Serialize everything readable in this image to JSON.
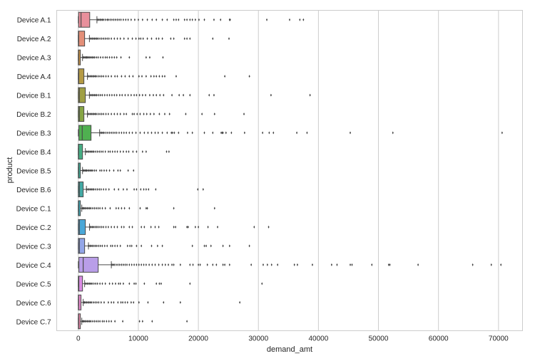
{
  "chart_data": {
    "type": "boxplot",
    "orientation": "horizontal",
    "xlabel": "demand_amt",
    "ylabel": "product",
    "xlim": [
      -3600,
      74000
    ],
    "xticks": [
      0,
      10000,
      20000,
      30000,
      40000,
      50000,
      60000,
      70000
    ],
    "xtick_labels": [
      "0",
      "10000",
      "20000",
      "30000",
      "40000",
      "50000",
      "60000",
      "70000"
    ],
    "grid": "vertical",
    "outlier_color": "#3f3f3f",
    "series": [
      {
        "name": "Device A.1",
        "color": "#e8909c",
        "whisker_low": 0,
        "q1": 50,
        "median": 450,
        "q3": 1900,
        "whisker_high": 3100,
        "outliers": [
          3200,
          3400,
          3600,
          3800,
          4000,
          4200,
          4500,
          4800,
          5000,
          5300,
          5600,
          5900,
          6200,
          6500,
          6800,
          7100,
          7500,
          7900,
          8300,
          8800,
          9400,
          10000,
          10700,
          11500,
          12300,
          13000,
          14000,
          14800,
          15900,
          16300,
          16700,
          17700,
          18100,
          18600,
          19000,
          19500,
          20100,
          21000,
          22600,
          23700,
          25200,
          25300,
          31400,
          35200,
          36900,
          37500
        ]
      },
      {
        "name": "Device A.2",
        "color": "#e38f78",
        "whisker_low": 0,
        "q1": 0,
        "median": 50,
        "q3": 1050,
        "whisker_high": 1850,
        "outliers": [
          1900,
          2100,
          2300,
          2500,
          2700,
          2900,
          3100,
          3300,
          3600,
          3900,
          4200,
          4500,
          4800,
          5100,
          5500,
          6000,
          6500,
          7000,
          7600,
          8300,
          9000,
          9600,
          10100,
          10400,
          10800,
          11500,
          12200,
          13000,
          13400,
          14000,
          15400,
          15900,
          17700,
          18100,
          18600,
          22400,
          25100
        ]
      },
      {
        "name": "Device A.3",
        "color": "#c99348",
        "whisker_low": 0,
        "q1": 0,
        "median": 30,
        "q3": 340,
        "whisker_high": 700,
        "outliers": [
          800,
          950,
          1100,
          1250,
          1400,
          1550,
          1700,
          1900,
          2100,
          2300,
          2500,
          2700,
          3000,
          3300,
          3700,
          4100,
          4500,
          4800,
          5200,
          5600,
          6000,
          6400,
          7100,
          8500,
          11300,
          11900,
          14100
        ]
      },
      {
        "name": "Device A.4",
        "color": "#b59a44",
        "whisker_low": 0,
        "q1": 0,
        "median": 60,
        "q3": 930,
        "whisker_high": 1520,
        "outliers": [
          1600,
          1800,
          2000,
          2200,
          2400,
          2600,
          2800,
          3000,
          3300,
          3600,
          3900,
          4200,
          4600,
          5000,
          5500,
          6100,
          6500,
          7200,
          7800,
          8500,
          9100,
          10100,
          10600,
          11300,
          12100,
          12600,
          13000,
          13500,
          14000,
          14400,
          16300,
          24400,
          28500
        ]
      },
      {
        "name": "Device B.1",
        "color": "#a0a044",
        "whisker_low": 0,
        "q1": 0,
        "median": 180,
        "q3": 1170,
        "whisker_high": 1850,
        "outliers": [
          1900,
          2100,
          2300,
          2500,
          2700,
          2900,
          3100,
          3400,
          3700,
          4000,
          4400,
          4800,
          5200,
          5600,
          6000,
          6400,
          6900,
          7300,
          7800,
          8300,
          8800,
          9300,
          9700,
          10200,
          10700,
          11200,
          11900,
          12500,
          13000,
          13600,
          14200,
          15600,
          16800,
          17500,
          18600,
          21800,
          22600,
          32100,
          38600
        ]
      },
      {
        "name": "Device B.2",
        "color": "#86a544",
        "whisker_low": 0,
        "q1": 0,
        "median": 180,
        "q3": 930,
        "whisker_high": 1520,
        "outliers": [
          1600,
          1800,
          2000,
          2200,
          2400,
          2600,
          2800,
          3000,
          3300,
          3600,
          3900,
          4200,
          4600,
          5000,
          5500,
          6000,
          6500,
          7000,
          7600,
          8000,
          9000,
          9300,
          9800,
          10300,
          10900,
          11400,
          12000,
          12600,
          13500,
          14400,
          15200,
          17900,
          20600,
          22700,
          27600
        ]
      },
      {
        "name": "Device B.3",
        "color": "#4fb050",
        "whisker_low": 0,
        "q1": 100,
        "median": 650,
        "q3": 2120,
        "whisker_high": 3550,
        "outliers": [
          3700,
          3900,
          4100,
          4300,
          4600,
          4900,
          5200,
          5500,
          5800,
          6100,
          6400,
          6800,
          7200,
          7600,
          8000,
          8500,
          9000,
          9600,
          10300,
          11000,
          11600,
          12200,
          12800,
          13300,
          14000,
          14800,
          15500,
          15700,
          16000,
          16700,
          18200,
          19000,
          21000,
          22400,
          23800,
          24000,
          24100,
          24600,
          25500,
          27700,
          30700,
          31800,
          32500,
          36400,
          38100,
          45300,
          52400,
          70600
        ]
      },
      {
        "name": "Device B.4",
        "color": "#47ad84",
        "whisker_low": 0,
        "q1": 0,
        "median": 30,
        "q3": 700,
        "whisker_high": 1170,
        "outliers": [
          1200,
          1400,
          1600,
          1800,
          2000,
          2200,
          2400,
          2600,
          2900,
          3200,
          3500,
          3800,
          4100,
          4500,
          5000,
          5300,
          5700,
          6100,
          6500,
          7000,
          7500,
          8000,
          8400,
          9100,
          9700,
          10700,
          11300,
          14700,
          15100
        ]
      },
      {
        "name": "Device B.5",
        "color": "#45ab97",
        "whisker_low": 0,
        "q1": 0,
        "median": 30,
        "q3": 340,
        "whisker_high": 700,
        "outliers": [
          800,
          950,
          1100,
          1250,
          1400,
          1600,
          1800,
          2000,
          2200,
          2400,
          2700,
          3000,
          3600,
          3900,
          4300,
          4700,
          5200,
          5900,
          6600,
          7000,
          8300,
          9200
        ]
      },
      {
        "name": "Device B.6",
        "color": "#43aaa5",
        "whisker_low": 0,
        "q1": 0,
        "median": 180,
        "q3": 810,
        "whisker_high": 1350,
        "outliers": [
          1400,
          1600,
          1800,
          2000,
          2200,
          2400,
          2600,
          2900,
          3200,
          3500,
          3800,
          4200,
          4600,
          5100,
          6000,
          6700,
          7500,
          8100,
          9300,
          9700,
          10400,
          10900,
          11300,
          11700,
          12900,
          19900,
          20800
        ]
      },
      {
        "name": "Device C.1",
        "color": "#44a8b5",
        "whisker_low": 0,
        "q1": 0,
        "median": 30,
        "q3": 340,
        "whisker_high": 580,
        "outliers": [
          650,
          800,
          950,
          1100,
          1300,
          1500,
          1700,
          1900,
          2100,
          2400,
          2700,
          3000,
          3300,
          3600,
          4000,
          4500,
          5300,
          6300,
          6700,
          7200,
          7700,
          8500,
          10300,
          11300,
          11500,
          15900,
          22700
        ]
      },
      {
        "name": "Device C.2",
        "color": "#4aa8d8",
        "whisker_low": 0,
        "q1": 0,
        "median": 180,
        "q3": 1170,
        "whisker_high": 1870,
        "outliers": [
          1950,
          2150,
          2350,
          2550,
          2800,
          3050,
          3300,
          3600,
          3900,
          4200,
          4600,
          5000,
          5500,
          6000,
          6500,
          7200,
          7600,
          8500,
          9000,
          10500,
          11000,
          12100,
          12800,
          13400,
          15900,
          16200,
          18100,
          18300,
          19500,
          20000,
          21600,
          23200,
          29300,
          31700
        ]
      },
      {
        "name": "Device C.3",
        "color": "#93a6e8",
        "whisker_low": 0,
        "q1": 0,
        "median": 180,
        "q3": 1050,
        "whisker_high": 1690,
        "outliers": [
          1750,
          1950,
          2150,
          2350,
          2600,
          2850,
          3100,
          3400,
          3700,
          4000,
          4400,
          4800,
          5400,
          5700,
          6100,
          6500,
          7000,
          8200,
          8600,
          8900,
          9700,
          10500,
          12200,
          13200,
          14000,
          19000,
          21000,
          21300,
          22100,
          24100,
          25200,
          28500
        ]
      },
      {
        "name": "Device C.4",
        "color": "#b99ee8",
        "whisker_low": 0,
        "q1": 100,
        "median": 810,
        "q3": 3310,
        "whisker_high": 5500,
        "outliers": [
          5600,
          5800,
          6000,
          6300,
          6600,
          6900,
          7200,
          7500,
          7800,
          8100,
          8500,
          8900,
          9300,
          9700,
          10100,
          10500,
          10900,
          11300,
          11800,
          12300,
          12800,
          13400,
          14000,
          14500,
          15000,
          15600,
          15900,
          17000,
          18600,
          19100,
          20000,
          20300,
          21500,
          22400,
          23000,
          24100,
          24400,
          25200,
          28800,
          30800,
          31500,
          32200,
          33200,
          36000,
          36500,
          39000,
          42200,
          43100,
          45300,
          45600,
          48900,
          51700,
          51900,
          56600,
          65700,
          68800,
          70400
        ]
      },
      {
        "name": "Device C.5",
        "color": "#d98ae3",
        "whisker_low": 0,
        "q1": 0,
        "median": 80,
        "q3": 700,
        "whisker_high": 1050,
        "outliers": [
          1100,
          1300,
          1500,
          1700,
          1900,
          2100,
          2300,
          2600,
          2900,
          3200,
          3600,
          4000,
          4500,
          5200,
          5700,
          6200,
          6700,
          7000,
          7500,
          8500,
          9300,
          9600,
          11000,
          13000,
          13500,
          13800,
          18600,
          30600
        ]
      },
      {
        "name": "Device C.6",
        "color": "#e087c8",
        "whisker_low": 0,
        "q1": 0,
        "median": 30,
        "q3": 450,
        "whisker_high": 810,
        "outliers": [
          900,
          1050,
          1200,
          1400,
          1600,
          1800,
          2000,
          2200,
          2500,
          2800,
          3100,
          3400,
          3800,
          4300,
          5000,
          5500,
          5900,
          6600,
          7100,
          7400,
          7800,
          8200,
          8800,
          9200,
          10100,
          11600,
          14200,
          17000,
          26900
        ]
      },
      {
        "name": "Device C.7",
        "color": "#e58aab",
        "whisker_low": 0,
        "q1": 0,
        "median": 30,
        "q3": 340,
        "whisker_high": 580,
        "outliers": [
          650,
          800,
          950,
          1100,
          1300,
          1500,
          1700,
          1900,
          2100,
          2400,
          2700,
          3000,
          3300,
          3600,
          4000,
          4300,
          4700,
          5100,
          5500,
          6100,
          7400,
          10200,
          10700,
          12300,
          18100
        ]
      }
    ]
  }
}
